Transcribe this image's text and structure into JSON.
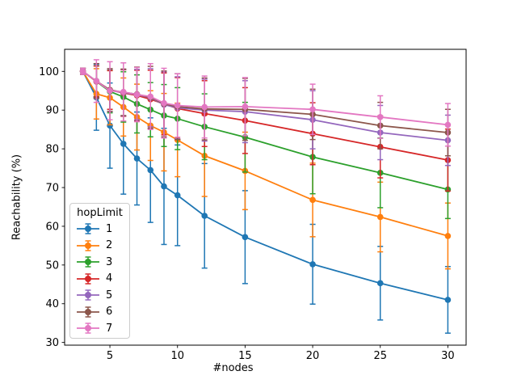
{
  "figure": {
    "background": "#ffffff",
    "text_color": "#000000",
    "spine_color": "#000000"
  },
  "chart_data": {
    "type": "line",
    "title": "",
    "xlabel": "#nodes",
    "ylabel": "Reachability (%)",
    "legend": {
      "title": "hopLimit",
      "position": "lower-left"
    },
    "grid": false,
    "error_bars": true,
    "marker": "circle",
    "x": [
      3,
      4,
      5,
      6,
      7,
      8,
      9,
      10,
      12,
      15,
      20,
      25,
      30
    ],
    "xticks": [
      5,
      10,
      15,
      20,
      25,
      30
    ],
    "yticks": [
      30,
      40,
      50,
      60,
      70,
      80,
      90,
      100
    ],
    "xlim": [
      1.65,
      31.35
    ],
    "ylim": [
      29.3,
      105.7
    ],
    "series": [
      {
        "name": "1",
        "color": "#1f77b4",
        "values": [
          100,
          93.3,
          86.0,
          81.3,
          77.5,
          74.5,
          70.3,
          68.0,
          62.7,
          57.2,
          50.2,
          45.3,
          41.0
        ],
        "errors": [
          0.8,
          8.5,
          11.0,
          13.0,
          12.0,
          13.5,
          15.0,
          13.0,
          13.5,
          12.0,
          10.3,
          9.5,
          8.6
        ]
      },
      {
        "name": "2",
        "color": "#ff7f0e",
        "values": [
          100,
          94.2,
          93.2,
          90.8,
          88.2,
          86.0,
          84.3,
          82.3,
          78.2,
          74.3,
          66.8,
          62.4,
          57.5
        ],
        "errors": [
          0.8,
          6.5,
          7.0,
          7.5,
          8.5,
          9.0,
          10.0,
          9.5,
          10.5,
          10.0,
          9.5,
          9.0,
          8.5
        ]
      },
      {
        "name": "3",
        "color": "#2ca02c",
        "values": [
          100,
          97.4,
          94.8,
          93.4,
          91.6,
          90.1,
          88.6,
          87.8,
          85.7,
          83.0,
          77.9,
          73.8,
          69.5
        ],
        "errors": [
          0.8,
          4.0,
          5.5,
          6.5,
          7.5,
          7.0,
          8.0,
          8.0,
          8.5,
          9.0,
          9.5,
          9.0,
          7.5
        ]
      },
      {
        "name": "4",
        "color": "#d62728",
        "values": [
          100,
          97.4,
          95.2,
          94.4,
          93.8,
          92.8,
          91.6,
          90.4,
          89.1,
          87.3,
          83.9,
          80.5,
          77.1
        ],
        "errors": [
          0.8,
          4.0,
          5.0,
          6.0,
          6.5,
          7.5,
          8.0,
          8.0,
          8.5,
          8.5,
          8.0,
          8.0,
          8.0
        ]
      },
      {
        "name": "5",
        "color": "#9467bd",
        "values": [
          100,
          97.5,
          95.1,
          94.5,
          94.0,
          93.2,
          91.4,
          90.6,
          90.0,
          89.6,
          87.5,
          84.2,
          82.2
        ],
        "errors": [
          0.8,
          4.5,
          5.5,
          6.0,
          6.5,
          7.5,
          8.5,
          8.0,
          8.0,
          8.0,
          7.5,
          7.0,
          6.5
        ]
      },
      {
        "name": "6",
        "color": "#8c564b",
        "values": [
          100,
          97.5,
          95.2,
          94.6,
          94.1,
          93.3,
          91.6,
          90.9,
          90.3,
          90.2,
          88.9,
          86.0,
          84.2
        ],
        "errors": [
          0.8,
          4.5,
          5.5,
          6.0,
          7.0,
          8.0,
          8.5,
          8.5,
          8.0,
          8.0,
          6.5,
          6.0,
          6.0
        ]
      },
      {
        "name": "7",
        "color": "#e377c2",
        "values": [
          100,
          97.5,
          95.0,
          94.7,
          94.0,
          93.5,
          91.8,
          91.2,
          90.8,
          90.9,
          90.2,
          88.2,
          86.2
        ],
        "errors": [
          0.8,
          5.5,
          7.5,
          7.5,
          7.0,
          8.5,
          9.0,
          8.2,
          8.0,
          7.5,
          6.5,
          5.5,
          5.5
        ]
      }
    ]
  }
}
